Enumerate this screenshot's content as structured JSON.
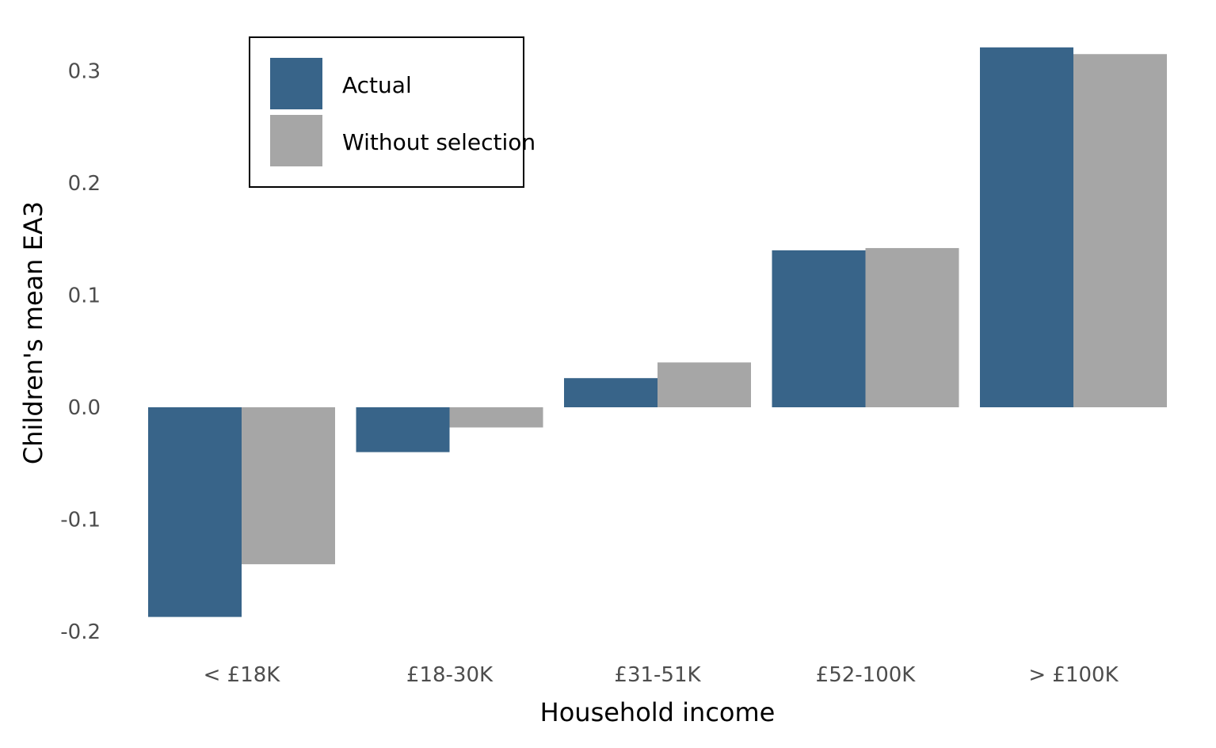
{
  "chart_data": {
    "type": "bar",
    "title": "",
    "xlabel": "Household income",
    "ylabel": "Children's mean EA3",
    "categories": [
      "< £18K",
      "£18-30K",
      "£31-51K",
      "£52-100K",
      "> £100K"
    ],
    "series": [
      {
        "name": "Actual",
        "color": "#386489",
        "values": [
          -0.187,
          -0.04,
          0.026,
          0.14,
          0.321
        ]
      },
      {
        "name": "Without selection",
        "color": "#a6a6a6",
        "values": [
          -0.14,
          -0.018,
          0.04,
          0.142,
          0.315
        ]
      }
    ],
    "ylim": [
      -0.2,
      0.3
    ],
    "yticks": [
      "-0.2",
      "-0.1",
      "0.0",
      "0.1",
      "0.2",
      "0.3"
    ],
    "ytick_values": [
      -0.2,
      -0.1,
      0.0,
      0.1,
      0.2,
      0.3
    ],
    "grid": false,
    "legend_position": "top-left"
  }
}
